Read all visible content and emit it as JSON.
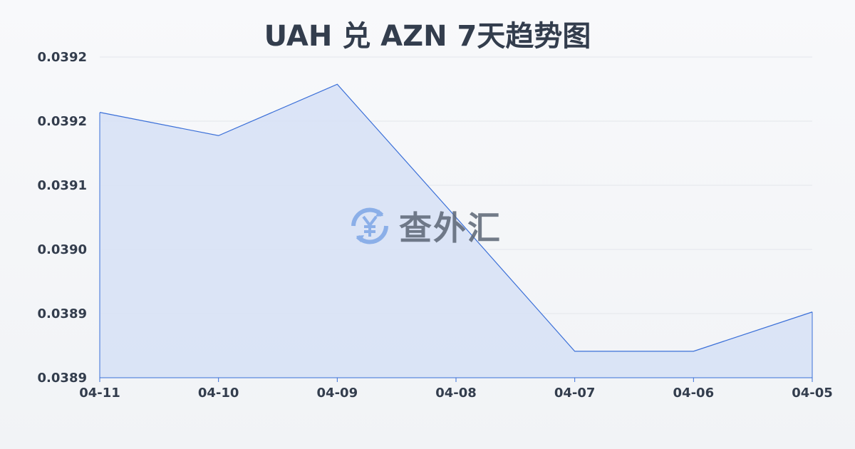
{
  "chart_data": {
    "type": "area",
    "title": "UAH 兑 AZN 7天趋势图",
    "categories": [
      "04-11",
      "04-10",
      "04-09",
      "04-08",
      "04-07",
      "04-06",
      "04-05"
    ],
    "values": [
      0.039181,
      0.039152,
      0.039216,
      0.03905,
      0.038883,
      0.038883,
      0.038932
    ],
    "ylim": [
      0.03885,
      0.03925
    ],
    "y_tick_labels": [
      "0.0392",
      "0.0392",
      "0.0391",
      "0.0390",
      "0.0389",
      "0.0389"
    ],
    "grid": true,
    "colors": {
      "line": "#3a6fd8",
      "fill": "#d6e1f6"
    }
  },
  "watermark": {
    "text": "查外汇",
    "icon": "yen-exchange-icon"
  }
}
